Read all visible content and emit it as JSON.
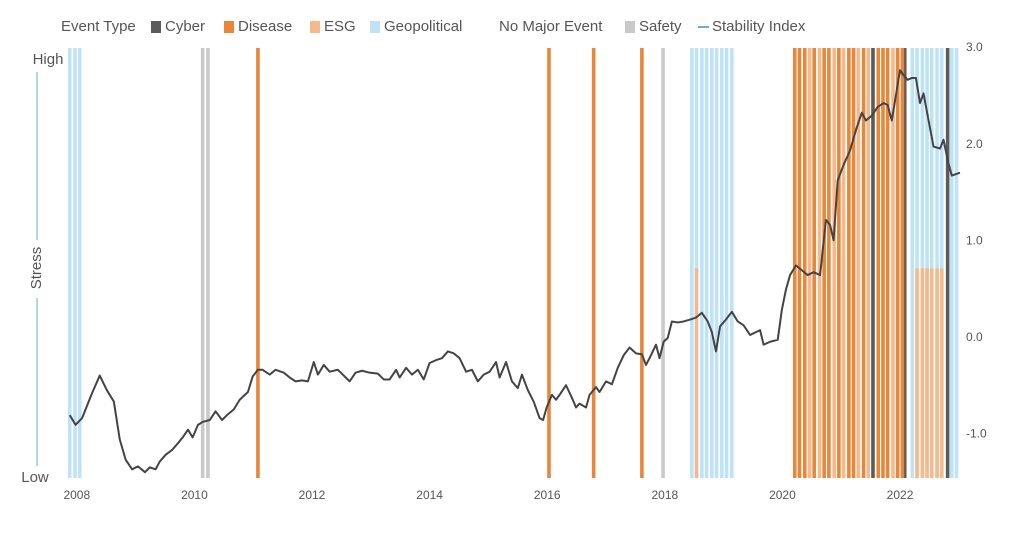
{
  "chart_data": {
    "type": "combo",
    "legend_title": "Event Type",
    "y_axis": {
      "high": "High",
      "low": "Low",
      "label": "Stress"
    },
    "xlim": [
      2007.85,
      2023.02
    ],
    "xticks": [
      2008,
      2010,
      2012,
      2014,
      2016,
      2018,
      2020,
      2022
    ],
    "ylim": [
      -1.45,
      3.0
    ],
    "yticks": [
      {
        "value": -1,
        "label": "-1.0"
      },
      {
        "value": 0,
        "label": "0.0"
      },
      {
        "value": 1,
        "label": "1.0"
      },
      {
        "value": 2,
        "label": "2.0"
      },
      {
        "value": 3,
        "label": "3.0"
      }
    ],
    "ytick_side": "right",
    "series": [
      {
        "name": "Cyber",
        "type": "bar",
        "color": "#5b5b5b",
        "x": [
          2021.54,
          2022.08,
          2022.81
        ],
        "values": [
          3.0,
          3.0,
          3.0
        ]
      },
      {
        "name": "Disease",
        "type": "bar",
        "color": "#e8873a",
        "x": [
          2011.08,
          2016.03,
          2016.79,
          2017.61,
          2020.21,
          2020.29,
          2020.38,
          2020.54,
          2020.71,
          2020.79,
          2020.96,
          2021.13,
          2021.21,
          2021.38,
          2021.63,
          2021.71,
          2021.79,
          2021.96,
          2022.04
        ],
        "values": [
          3.0,
          3.0,
          3.0,
          3.0,
          3.0,
          3.0,
          3.0,
          3.0,
          3.0,
          3.0,
          3.0,
          3.0,
          3.0,
          3.0,
          3.0,
          3.0,
          3.0,
          3.0,
          3.0
        ]
      },
      {
        "name": "ESG",
        "type": "bar",
        "color": "#f4b98c",
        "x": [
          2018.54,
          2020.46,
          2020.63,
          2020.88,
          2021.04,
          2021.29,
          2021.46,
          2021.88,
          2022.29,
          2022.38,
          2022.46,
          2022.54,
          2022.63,
          2022.71
        ],
        "values": [
          0.72,
          3.0,
          3.0,
          3.0,
          3.0,
          3.0,
          3.0,
          3.0,
          0.72,
          0.72,
          0.72,
          0.72,
          0.72,
          0.72
        ]
      },
      {
        "name": "Geopolitical",
        "type": "bar",
        "color": "#bfe3f6",
        "x": [
          2007.88,
          2007.97,
          2008.05,
          2018.46,
          2018.54,
          2018.63,
          2018.71,
          2018.8,
          2018.88,
          2018.97,
          2019.05,
          2019.14,
          2022.21,
          2022.29,
          2022.38,
          2022.46,
          2022.54,
          2022.63,
          2022.71,
          2022.88,
          2022.96
        ],
        "values": [
          3.0,
          3.0,
          3.0,
          3.0,
          3.0,
          3.0,
          3.0,
          3.0,
          3.0,
          3.0,
          3.0,
          3.0,
          3.0,
          3.0,
          3.0,
          3.0,
          3.0,
          3.0,
          3.0,
          3.0,
          3.0
        ]
      },
      {
        "name": "No Major Event",
        "type": "bar",
        "color": "#ffffff",
        "x": [],
        "values": []
      },
      {
        "name": "Safety",
        "type": "bar",
        "color": "#c9c9c9",
        "x": [
          2010.14,
          2010.23,
          2017.97
        ],
        "values": [
          3.0,
          3.0,
          3.0
        ]
      },
      {
        "name": "Stability Index",
        "type": "line",
        "color": "#444444",
        "legend_color": "#6aaed6",
        "x": [
          2007.88,
          2007.98,
          2008.09,
          2008.26,
          2008.39,
          2008.51,
          2008.63,
          2008.73,
          2008.83,
          2008.94,
          2009.04,
          2009.16,
          2009.24,
          2009.34,
          2009.41,
          2009.51,
          2009.62,
          2009.72,
          2009.8,
          2009.89,
          2009.97,
          2010.06,
          2010.14,
          2010.26,
          2010.36,
          2010.47,
          2010.57,
          2010.67,
          2010.77,
          2010.91,
          2010.99,
          2011.08,
          2011.16,
          2011.28,
          2011.38,
          2011.52,
          2011.62,
          2011.72,
          2011.83,
          2011.93,
          2012.03,
          2012.1,
          2012.2,
          2012.3,
          2012.44,
          2012.54,
          2012.64,
          2012.74,
          2012.85,
          2012.98,
          2013.12,
          2013.22,
          2013.32,
          2013.43,
          2013.49,
          2013.6,
          2013.7,
          2013.8,
          2013.9,
          2014.0,
          2014.11,
          2014.21,
          2014.31,
          2014.41,
          2014.51,
          2014.62,
          2014.72,
          2014.82,
          2014.92,
          2015.02,
          2015.13,
          2015.19,
          2015.3,
          2015.4,
          2015.5,
          2015.57,
          2015.67,
          2015.77,
          2015.87,
          2015.93,
          2015.99,
          2016.08,
          2016.15,
          2016.21,
          2016.32,
          2016.42,
          2016.49,
          2016.55,
          2016.66,
          2016.72,
          2016.83,
          2016.89,
          2017.0,
          2017.1,
          2017.2,
          2017.3,
          2017.4,
          2017.51,
          2017.61,
          2017.68,
          2017.74,
          2017.85,
          2017.91,
          2017.98,
          2018.05,
          2018.12,
          2018.22,
          2018.32,
          2018.43,
          2018.53,
          2018.63,
          2018.73,
          2018.8,
          2018.87,
          2018.94,
          2019.04,
          2019.14,
          2019.24,
          2019.34,
          2019.45,
          2019.55,
          2019.62,
          2019.68,
          2019.79,
          2019.92,
          2019.99,
          2020.06,
          2020.13,
          2020.23,
          2020.33,
          2020.43,
          2020.53,
          2020.64,
          2020.74,
          2020.81,
          2020.87,
          2020.94,
          2021.04,
          2021.15,
          2021.25,
          2021.35,
          2021.42,
          2021.52,
          2021.62,
          2021.72,
          2021.79,
          2021.86,
          2021.93,
          2022.0,
          2022.06,
          2022.13,
          2022.2,
          2022.27,
          2022.34,
          2022.4,
          2022.51,
          2022.57,
          2022.68,
          2022.74,
          2022.81,
          2022.88,
          2023.02
        ],
        "values": [
          -0.8,
          -0.9,
          -0.83,
          -0.57,
          -0.39,
          -0.54,
          -0.66,
          -1.05,
          -1.26,
          -1.36,
          -1.33,
          -1.39,
          -1.34,
          -1.36,
          -1.28,
          -1.21,
          -1.16,
          -1.09,
          -1.03,
          -0.95,
          -1.03,
          -0.9,
          -0.87,
          -0.85,
          -0.76,
          -0.85,
          -0.79,
          -0.74,
          -0.64,
          -0.56,
          -0.4,
          -0.33,
          -0.33,
          -0.38,
          -0.33,
          -0.36,
          -0.41,
          -0.45,
          -0.44,
          -0.45,
          -0.25,
          -0.38,
          -0.28,
          -0.35,
          -0.33,
          -0.39,
          -0.45,
          -0.36,
          -0.34,
          -0.36,
          -0.37,
          -0.43,
          -0.43,
          -0.33,
          -0.41,
          -0.31,
          -0.38,
          -0.33,
          -0.43,
          -0.26,
          -0.23,
          -0.21,
          -0.14,
          -0.16,
          -0.21,
          -0.35,
          -0.33,
          -0.45,
          -0.38,
          -0.35,
          -0.25,
          -0.41,
          -0.25,
          -0.45,
          -0.52,
          -0.38,
          -0.54,
          -0.66,
          -0.83,
          -0.85,
          -0.72,
          -0.59,
          -0.64,
          -0.59,
          -0.49,
          -0.62,
          -0.72,
          -0.68,
          -0.72,
          -0.59,
          -0.51,
          -0.56,
          -0.45,
          -0.48,
          -0.31,
          -0.18,
          -0.1,
          -0.16,
          -0.17,
          -0.28,
          -0.21,
          -0.07,
          -0.21,
          -0.04,
          0.0,
          0.17,
          0.16,
          0.17,
          0.19,
          0.21,
          0.26,
          0.17,
          0.06,
          -0.14,
          0.12,
          0.19,
          0.27,
          0.17,
          0.13,
          0.03,
          0.06,
          0.08,
          -0.07,
          -0.04,
          -0.02,
          0.29,
          0.5,
          0.65,
          0.75,
          0.7,
          0.65,
          0.68,
          0.65,
          1.22,
          1.17,
          1.01,
          1.63,
          1.79,
          1.94,
          2.15,
          2.33,
          2.25,
          2.3,
          2.39,
          2.43,
          2.41,
          2.25,
          2.51,
          2.77,
          2.72,
          2.67,
          2.69,
          2.69,
          2.43,
          2.53,
          2.17,
          1.98,
          1.96,
          2.05,
          1.84,
          1.68,
          1.71
        ]
      }
    ]
  }
}
